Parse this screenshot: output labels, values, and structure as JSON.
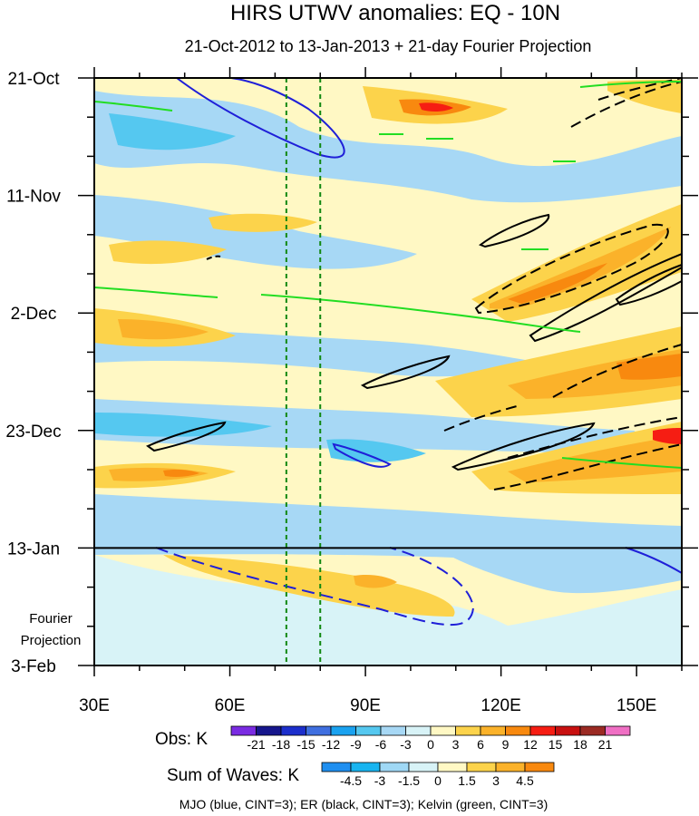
{
  "chart_data": {
    "type": "heatmap",
    "title": "HIRS UTWV anomalies: EQ - 10N",
    "subtitle": "21-Oct-2012 to 13-Jan-2013 + 21-day Fourier Projection",
    "x_axis": {
      "range": [
        30,
        160
      ],
      "ticks": [
        30,
        60,
        90,
        120,
        150
      ],
      "tick_labels": [
        "30E",
        "60E",
        "90E",
        "120E",
        "150E"
      ]
    },
    "y_axis": {
      "range_days": [
        0,
        105
      ],
      "ticks": [
        0,
        21,
        42,
        63,
        84,
        105
      ],
      "tick_labels": [
        "21-Oct",
        "11-Nov",
        "2-Dec",
        "23-Dec",
        "13-Jan",
        "3-Feb"
      ]
    },
    "projection_label_lines": [
      "Fourier",
      "Projection"
    ],
    "observation_end_day": 84,
    "reference_lines_lon": [
      72.5,
      80
    ],
    "obs_colorbar": {
      "label": "Obs: K",
      "levels": [
        -21,
        -18,
        -15,
        -12,
        -9,
        -6,
        -3,
        0,
        3,
        6,
        9,
        12,
        15,
        18,
        21
      ],
      "colors": [
        "#7a2be2",
        "#16168c",
        "#1c2fcc",
        "#3f6fe0",
        "#1aa2f0",
        "#55c8f0",
        "#a7d8f5",
        "#d8f3f7",
        "#fff8c4",
        "#fcd34b",
        "#fbb22a",
        "#f8890f",
        "#f61d13",
        "#c81010",
        "#9b2a23",
        "#f06fc4"
      ]
    },
    "waves_colorbar": {
      "label": "Sum of Waves: K",
      "levels": [
        -4.5,
        -3,
        -1.5,
        0,
        1.5,
        3,
        4.5
      ],
      "colors": [
        "#1f8ff0",
        "#18b4f0",
        "#9fd8f5",
        "#d8f3f7",
        "#fff8c4",
        "#fcd34b",
        "#fbb22a",
        "#f8890f"
      ]
    },
    "footer": "MJO (blue, CINT=3); ER (black, CINT=3); Kelvin (green, CINT=3)",
    "wave_colors": {
      "mjo": "#1f1fd8",
      "er": "#000000",
      "kelvin": "#22dd22",
      "reference": "#118811"
    }
  }
}
